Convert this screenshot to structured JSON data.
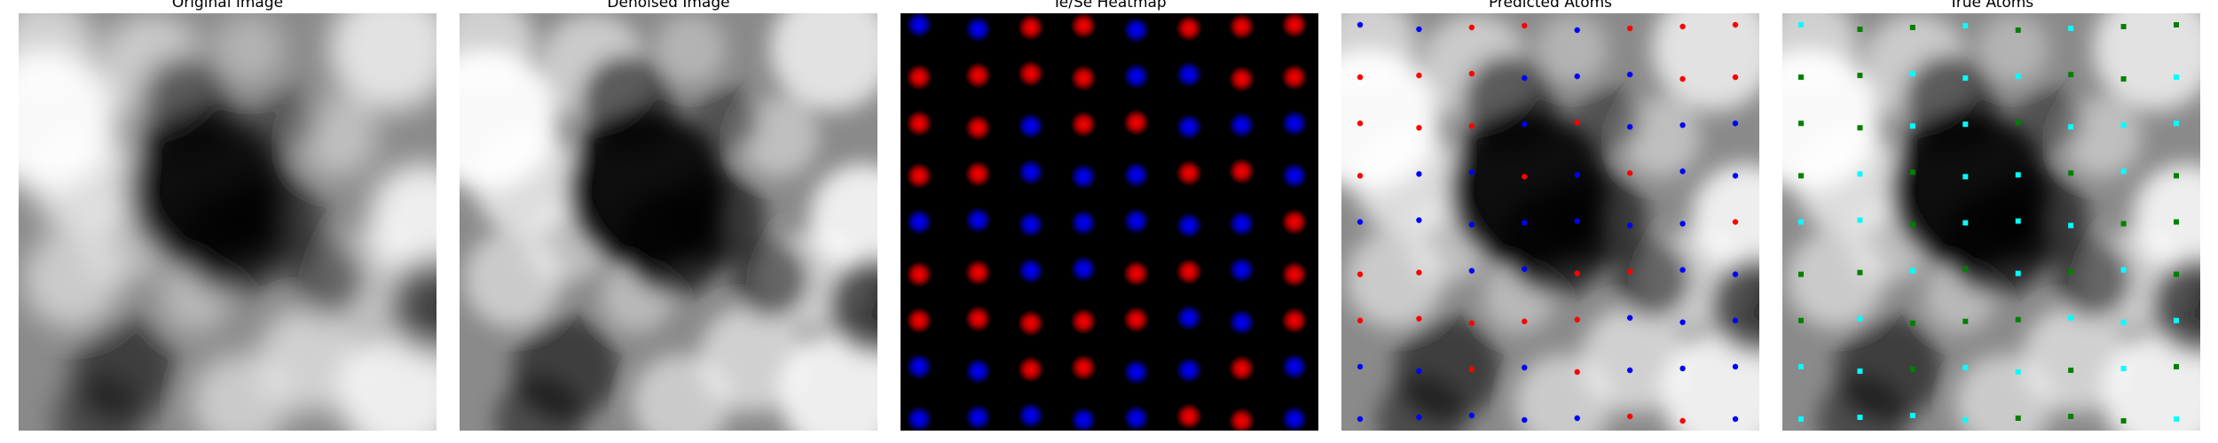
{
  "figure": {
    "panels": [
      {
        "id": "original",
        "title": "Original Image"
      },
      {
        "id": "denoised",
        "title": "Denoised Image"
      },
      {
        "id": "heatmap",
        "title": "Te/Se Heatmap"
      },
      {
        "id": "predicted",
        "title": "Predicted Atoms"
      },
      {
        "id": "true",
        "title": "True Atoms"
      }
    ]
  },
  "colors": {
    "background": "#ffffff",
    "te": "#ff0000",
    "se": "#0000ff",
    "true_te": "#00ffff",
    "true_se": "#008000"
  },
  "image": {
    "type": "grayscale-stem-image",
    "bright_regions": "upper-left, upper-right, lower-right",
    "dark_regions": "center-bottom"
  },
  "heatmap": {
    "rows": [
      [
        "se",
        "se",
        "te",
        "te",
        "se",
        "te",
        "te",
        "te"
      ],
      [
        "te",
        "te",
        "te",
        "te",
        "se",
        "se",
        "te",
        "te"
      ],
      [
        "te",
        "te",
        "se",
        "te",
        "te",
        "se",
        "se",
        "se"
      ],
      [
        "te",
        "te",
        "se",
        "se",
        "se",
        "te",
        "te",
        "se"
      ],
      [
        "se",
        "se",
        "se",
        "se",
        "se",
        "se",
        "se",
        "te"
      ],
      [
        "te",
        "te",
        "se",
        "se",
        "te",
        "te",
        "se",
        "te"
      ],
      [
        "te",
        "te",
        "te",
        "te",
        "te",
        "se",
        "se",
        "te"
      ],
      [
        "se",
        "se",
        "te",
        "te",
        "se",
        "se",
        "te",
        "se"
      ],
      [
        "se",
        "se",
        "se",
        "se",
        "se",
        "te",
        "te",
        "se"
      ]
    ]
  },
  "predicted": {
    "rows": [
      [
        "se",
        "se",
        "te",
        "te",
        "se",
        "te",
        "te",
        "te"
      ],
      [
        "te",
        "te",
        "te",
        "se",
        "se",
        "se",
        "te",
        "te"
      ],
      [
        "te",
        "te",
        "te",
        "se",
        "te",
        "se",
        "se",
        "se"
      ],
      [
        "te",
        "se",
        "se",
        "te",
        "se",
        "te",
        "se",
        "se"
      ],
      [
        "se",
        "se",
        "se",
        "se",
        "se",
        "se",
        "se",
        "te"
      ],
      [
        "te",
        "te",
        "se",
        "se",
        "te",
        "te",
        "se",
        "se"
      ],
      [
        "te",
        "te",
        "te",
        "te",
        "te",
        "se",
        "se",
        "se"
      ],
      [
        "se",
        "se",
        "te",
        "se",
        "te",
        "se",
        "se",
        "se"
      ],
      [
        "se",
        "se",
        "se",
        "se",
        "se",
        "te",
        "te",
        "se"
      ]
    ]
  },
  "true_atoms": {
    "rows": [
      [
        "te",
        "se",
        "se",
        "te",
        "se",
        "te",
        "se",
        "se"
      ],
      [
        "se",
        "se",
        "te",
        "te",
        "te",
        "se",
        "se",
        "te"
      ],
      [
        "se",
        "se",
        "te",
        "te",
        "se",
        "te",
        "te",
        "te"
      ],
      [
        "se",
        "te",
        "se",
        "te",
        "te",
        "se",
        "te",
        "se"
      ],
      [
        "te",
        "te",
        "se",
        "te",
        "te",
        "te",
        "se",
        "se"
      ],
      [
        "se",
        "se",
        "te",
        "se",
        "te",
        "se",
        "te",
        "se"
      ],
      [
        "se",
        "te",
        "se",
        "se",
        "se",
        "te",
        "te",
        "te"
      ],
      [
        "te",
        "te",
        "se",
        "te",
        "te",
        "se",
        "te",
        "se"
      ],
      [
        "te",
        "te",
        "te",
        "te",
        "se",
        "se",
        "se",
        "te"
      ]
    ]
  }
}
